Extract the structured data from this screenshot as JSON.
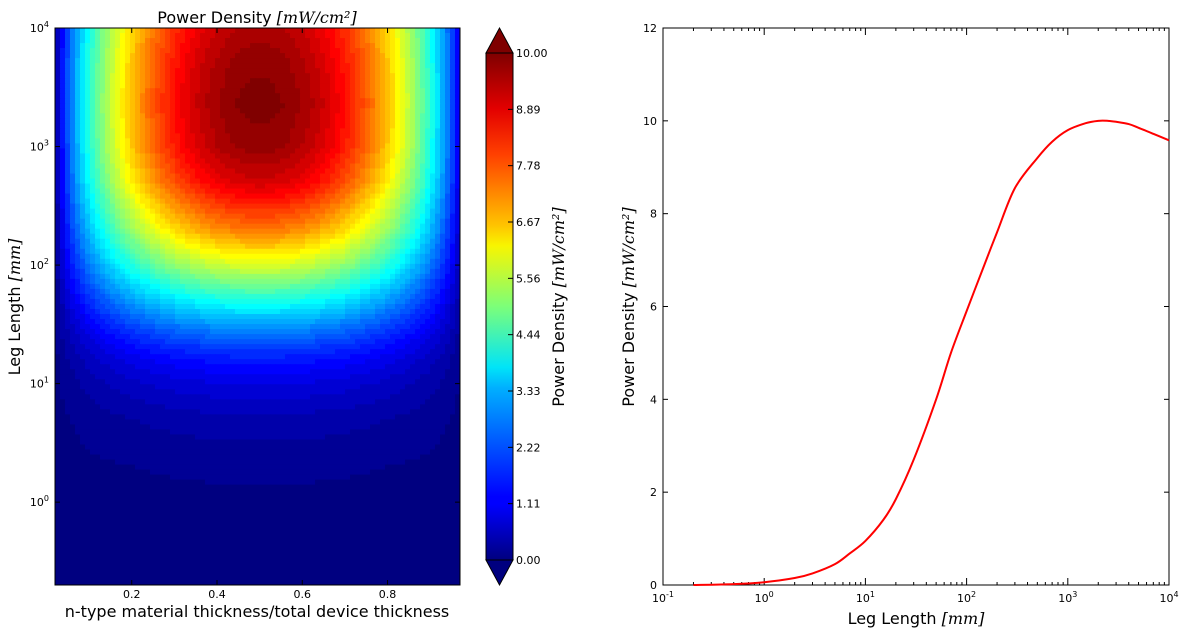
{
  "chart_data": [
    {
      "type": "heatmap",
      "title": "Power Density",
      "title_unit": "[mW/cm²]",
      "xlabel": "n-type material thickness/total device thickness",
      "ylabel": "Leg Length",
      "ylabel_unit": "[mm]",
      "x_scale": "linear",
      "y_scale": "log",
      "xlim": [
        0.02,
        0.97
      ],
      "ylim": [
        0.2,
        10000
      ],
      "x_ticks": [
        "0.2",
        "0.4",
        "0.6",
        "0.8"
      ],
      "y_ticks": [
        {
          "base": "10",
          "exp": "0",
          "value": 1
        },
        {
          "base": "10",
          "exp": "1",
          "value": 10
        },
        {
          "base": "10",
          "exp": "2",
          "value": 100
        },
        {
          "base": "10",
          "exp": "3",
          "value": 1000
        },
        {
          "base": "10",
          "exp": "4",
          "value": 10000
        }
      ],
      "colormap": "jet",
      "colorbar": {
        "label": "Power Density",
        "label_unit": "[mW/cm²]",
        "range": [
          0,
          10
        ],
        "extend": "both",
        "ticks": [
          "0.00",
          "1.11",
          "2.22",
          "3.33",
          "4.44",
          "5.56",
          "6.67",
          "7.78",
          "8.89",
          "10.00"
        ]
      },
      "peak": {
        "x": 0.5,
        "y": 2300,
        "value": 10.0
      },
      "profile_leg_length": [
        0.2,
        0.5,
        1,
        2,
        5,
        10,
        15,
        20,
        30,
        50,
        100,
        200,
        500,
        1000,
        2300,
        5000,
        10000
      ],
      "profile_value": [
        0.0,
        0.02,
        0.06,
        0.15,
        0.45,
        0.95,
        1.4,
        1.85,
        2.7,
        4.0,
        5.9,
        7.6,
        9.2,
        9.8,
        10.0,
        9.85,
        9.58
      ]
    },
    {
      "type": "line",
      "xlabel": "Leg Length",
      "xlabel_unit": "[mm]",
      "ylabel": "Power Density",
      "ylabel_unit": "[mW/cm²]",
      "x_scale": "log",
      "xlim": [
        0.1,
        10000
      ],
      "ylim": [
        0,
        12
      ],
      "x_ticks": [
        {
          "base": "10",
          "exp": "-1",
          "value": 0.1
        },
        {
          "base": "10",
          "exp": "0",
          "value": 1
        },
        {
          "base": "10",
          "exp": "1",
          "value": 10
        },
        {
          "base": "10",
          "exp": "2",
          "value": 100
        },
        {
          "base": "10",
          "exp": "3",
          "value": 1000
        },
        {
          "base": "10",
          "exp": "4",
          "value": 10000
        }
      ],
      "y_ticks": [
        "0",
        "2",
        "4",
        "6",
        "8",
        "10",
        "12"
      ],
      "y_tick_values": [
        0,
        2,
        4,
        6,
        8,
        10,
        12
      ],
      "line_color": "#ff0000",
      "grid": false,
      "series": [
        {
          "x": [
            0.2,
            0.5,
            1,
            2,
            3,
            5,
            7,
            10,
            15,
            20,
            30,
            50,
            70,
            100,
            150,
            200,
            300,
            500,
            700,
            1000,
            1500,
            2000,
            2500,
            3000,
            4000,
            5000,
            7000,
            10000
          ],
          "y": [
            0.0,
            0.02,
            0.06,
            0.15,
            0.25,
            0.45,
            0.68,
            0.95,
            1.4,
            1.85,
            2.7,
            4.0,
            5.0,
            5.9,
            6.9,
            7.6,
            8.55,
            9.2,
            9.55,
            9.8,
            9.95,
            10.0,
            10.0,
            9.98,
            9.93,
            9.85,
            9.72,
            9.58
          ]
        }
      ]
    }
  ]
}
